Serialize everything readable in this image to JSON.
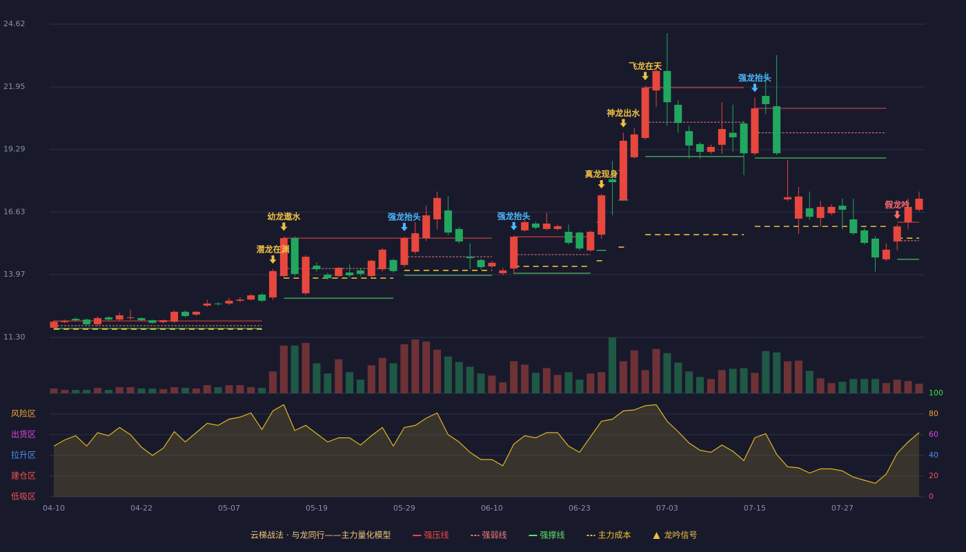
{
  "chart_data": {
    "type": "candlestick",
    "categories": [
      "04-10",
      null,
      null,
      null,
      null,
      null,
      null,
      null,
      "04-22",
      null,
      null,
      null,
      null,
      null,
      null,
      null,
      "05-07",
      null,
      null,
      null,
      null,
      null,
      null,
      null,
      "05-19",
      null,
      null,
      null,
      null,
      null,
      null,
      null,
      "05-29",
      null,
      null,
      null,
      null,
      null,
      null,
      null,
      "06-10",
      null,
      null,
      null,
      null,
      null,
      null,
      null,
      "06-23",
      null,
      null,
      null,
      null,
      null,
      null,
      null,
      "07-03",
      null,
      null,
      null,
      null,
      null,
      null,
      null,
      "07-15",
      null,
      null,
      null,
      null,
      null,
      null,
      null,
      "07-27",
      null,
      null,
      null,
      null,
      null,
      null,
      null
    ],
    "open": [
      11.71,
      11.95,
      12.09,
      12.06,
      11.86,
      12.15,
      12.06,
      12.12,
      12.12,
      12.03,
      11.95,
      11.97,
      12.39,
      12.27,
      12.65,
      12.74,
      12.74,
      12.86,
      12.91,
      13.12,
      13.0,
      13.91,
      15.52,
      13.18,
      14.35,
      13.97,
      13.91,
      14.06,
      14.15,
      13.91,
      14.2,
      14.59,
      14.38,
      14.94,
      15.52,
      16.32,
      16.7,
      15.91,
      14.73,
      14.59,
      14.32,
      14.03,
      14.23,
      15.85,
      16.14,
      15.91,
      15.91,
      15.79,
      15.76,
      15.0,
      15.67,
      18.02,
      17.14,
      18.96,
      19.78,
      21.8,
      22.63,
      21.19,
      20.07,
      19.52,
      19.19,
      19.49,
      20.0,
      20.4,
      19.13,
      21.57,
      21.13,
      17.17,
      16.35,
      16.79,
      16.38,
      16.58,
      16.9,
      16.32,
      15.85,
      15.5,
      14.62,
      15.38,
      16.2,
      16.73
    ],
    "close": [
      11.97,
      12.0,
      12.03,
      11.86,
      12.12,
      12.06,
      12.24,
      12.15,
      12.03,
      11.92,
      12.03,
      12.39,
      12.21,
      12.39,
      12.74,
      12.71,
      12.86,
      12.91,
      13.09,
      12.86,
      14.12,
      15.52,
      14.0,
      14.73,
      14.2,
      13.82,
      14.26,
      13.94,
      14.0,
      14.56,
      15.03,
      14.12,
      15.52,
      15.73,
      16.49,
      17.23,
      15.76,
      15.38,
      14.67,
      14.29,
      14.47,
      14.15,
      15.58,
      16.2,
      15.97,
      16.14,
      16.03,
      15.32,
      15.08,
      15.79,
      17.34,
      17.9,
      19.66,
      19.93,
      21.92,
      22.63,
      21.3,
      20.42,
      19.46,
      19.19,
      19.4,
      20.16,
      19.81,
      19.13,
      21.04,
      21.22,
      19.13,
      17.26,
      17.29,
      16.43,
      16.85,
      16.85,
      16.73,
      15.73,
      15.32,
      14.7,
      15.03,
      16.02,
      16.85,
      17.2
    ],
    "high": [
      12.03,
      12.06,
      12.15,
      12.1,
      12.2,
      12.2,
      12.35,
      12.48,
      12.15,
      12.06,
      12.06,
      12.45,
      12.45,
      12.42,
      12.9,
      12.8,
      12.98,
      13.0,
      13.15,
      13.18,
      14.2,
      15.6,
      15.6,
      14.8,
      14.5,
      14.05,
      14.3,
      14.4,
      14.25,
      14.6,
      15.1,
      14.65,
      15.58,
      16.2,
      16.9,
      17.5,
      17.3,
      16.0,
      15.3,
      14.65,
      14.55,
      14.25,
      15.62,
      16.3,
      16.22,
      16.6,
      16.1,
      16.1,
      15.8,
      15.85,
      17.4,
      18.8,
      20.0,
      20.2,
      22.0,
      22.9,
      24.24,
      21.4,
      20.3,
      19.6,
      19.5,
      21.3,
      21.2,
      20.5,
      21.5,
      22.6,
      23.3,
      18.84,
      17.7,
      17.5,
      17.1,
      16.95,
      17.2,
      17.2,
      15.95,
      15.6,
      15.3,
      16.1,
      17.2,
      17.5
    ],
    "low": [
      11.65,
      11.9,
      11.98,
      11.8,
      11.8,
      12.0,
      12.0,
      12.05,
      12.0,
      11.88,
      11.9,
      11.92,
      12.15,
      12.22,
      12.6,
      12.65,
      12.68,
      12.8,
      12.88,
      12.8,
      12.9,
      13.85,
      13.9,
      13.1,
      14.1,
      13.75,
      13.85,
      13.85,
      13.9,
      13.85,
      14.1,
      14.05,
      14.3,
      14.85,
      15.4,
      15.9,
      15.65,
      15.3,
      14.2,
      14.2,
      14.25,
      13.95,
      14.0,
      15.8,
      15.9,
      15.85,
      15.85,
      15.25,
      15.0,
      14.95,
      15.5,
      16.5,
      17.1,
      18.9,
      19.7,
      21.1,
      20.3,
      20.0,
      18.9,
      18.9,
      19.1,
      19.1,
      19.2,
      18.2,
      19.05,
      20.8,
      19.05,
      17.1,
      15.7,
      16.3,
      16.0,
      16.5,
      15.9,
      15.65,
      15.25,
      14.1,
      14.55,
      15.0,
      15.9,
      16.65
    ],
    "up_color": "#e8473d",
    "down_color": "#22a85e",
    "ylim": [
      11.3,
      24.62
    ],
    "yticks": [
      {
        "value": 11.3,
        "label": "11.30"
      },
      13.97,
      16.63,
      19.29,
      21.95,
      24.62
    ],
    "volume": [
      7,
      5,
      5,
      5,
      8,
      5,
      9,
      9,
      7,
      7,
      6,
      9,
      8,
      7,
      12,
      9,
      12,
      12,
      9,
      8,
      32,
      70,
      70,
      74,
      44,
      29,
      50,
      31,
      20,
      41,
      52,
      44,
      72,
      79,
      76,
      64,
      54,
      46,
      39,
      29,
      26,
      16,
      47,
      42,
      30,
      37,
      27,
      31,
      20,
      29,
      31,
      82,
      47,
      63,
      34,
      65,
      59,
      45,
      32,
      24,
      21,
      34,
      36,
      37,
      30,
      62,
      60,
      47,
      48,
      33,
      22,
      15,
      17,
      21,
      21,
      21,
      15,
      20,
      18,
      14
    ],
    "volume_up_color": "#6e3236",
    "volume_down_color": "#1f5844",
    "levels": [
      {
        "name": "强压线",
        "color": "#f0483e",
        "dash": false,
        "segments": [
          {
            "start": 0,
            "end": 19,
            "value": 12.0
          },
          {
            "start": 21,
            "end": 40,
            "value": 15.52
          },
          {
            "start": 42,
            "end": 49,
            "value": 15.58
          },
          {
            "start": 54,
            "end": 63,
            "value": 21.92
          },
          {
            "start": 64,
            "end": 76,
            "value": 21.04
          },
          {
            "start": 77,
            "end": 79,
            "value": 16.2
          }
        ]
      },
      {
        "name": "强弱线",
        "color": "#f07a7a",
        "dash": true,
        "segments": [
          {
            "start": 0,
            "end": 19,
            "value": 11.8
          },
          {
            "start": 21,
            "end": 31,
            "value": 14.23
          },
          {
            "start": 32,
            "end": 40,
            "value": 14.73
          },
          {
            "start": 42,
            "end": 49,
            "value": 14.82
          },
          {
            "start": 50,
            "end": 50,
            "value": 16.2
          },
          {
            "start": 52,
            "end": 52,
            "value": 18.4
          },
          {
            "start": 54,
            "end": 63,
            "value": 20.45
          },
          {
            "start": 64,
            "end": 76,
            "value": 20.0
          },
          {
            "start": 77,
            "end": 79,
            "value": 15.41
          }
        ]
      },
      {
        "name": "强撑线",
        "color": "#5ee06a",
        "dash": false,
        "segments": [
          {
            "start": 0,
            "end": 19,
            "value": 11.68
          },
          {
            "start": 21,
            "end": 31,
            "value": 12.97
          },
          {
            "start": 32,
            "end": 40,
            "value": 13.94
          },
          {
            "start": 42,
            "end": 49,
            "value": 14.03
          },
          {
            "start": 50,
            "end": 50,
            "value": 15.0
          },
          {
            "start": 52,
            "end": 52,
            "value": 17.14
          },
          {
            "start": 54,
            "end": 63,
            "value": 18.99
          },
          {
            "start": 64,
            "end": 76,
            "value": 18.93
          },
          {
            "start": 77,
            "end": 79,
            "value": 14.62
          }
        ]
      },
      {
        "name": "主力成本",
        "color": "#f0c030",
        "dash": true,
        "segments": [
          {
            "start": 0,
            "end": 19,
            "value": 11.65
          },
          {
            "start": 21,
            "end": 31,
            "value": 13.82
          },
          {
            "start": 32,
            "end": 40,
            "value": 14.15
          },
          {
            "start": 42,
            "end": 49,
            "value": 14.32
          },
          {
            "start": 50,
            "end": 50,
            "value": 14.56
          },
          {
            "start": 52,
            "end": 52,
            "value": 15.14
          },
          {
            "start": 54,
            "end": 63,
            "value": 15.67
          },
          {
            "start": 64,
            "end": 76,
            "value": 16.02
          },
          {
            "start": 77,
            "end": 79,
            "value": 15.52
          }
        ]
      }
    ],
    "signals": [
      {
        "index": 20,
        "label": "潜龙在渊",
        "color": "#f0c040"
      },
      {
        "index": 21,
        "label": "幼龙遨水",
        "color": "#f0c040"
      },
      {
        "index": 32,
        "label": "强龙抬头",
        "color": "#4db8ff"
      },
      {
        "index": 42,
        "label": "强龙抬头",
        "color": "#4db8ff"
      },
      {
        "index": 50,
        "label": "真龙现身",
        "color": "#f0c040"
      },
      {
        "index": 52,
        "label": "神龙出水",
        "color": "#f0c040"
      },
      {
        "index": 54,
        "label": "飞龙在天",
        "color": "#f0c040"
      },
      {
        "index": 64,
        "label": "强龙抬头",
        "color": "#4db8ff"
      },
      {
        "index": 77,
        "label": "假龙吟",
        "color": "#ff6b6b"
      }
    ],
    "oscillator": {
      "values": [
        49,
        55,
        59,
        49,
        62,
        59,
        67,
        60,
        48,
        40,
        47,
        63,
        53,
        62,
        71,
        69,
        75,
        77,
        81,
        65,
        83,
        89,
        64,
        69,
        61,
        53,
        57,
        57,
        50,
        59,
        67,
        49,
        67,
        69,
        76,
        81,
        60,
        53,
        43,
        36,
        36,
        30,
        51,
        59,
        57,
        62,
        62,
        49,
        43,
        58,
        73,
        75,
        83,
        84,
        88,
        89,
        73,
        63,
        52,
        45,
        43,
        50,
        44,
        35,
        57,
        61,
        41,
        29,
        28,
        23,
        27,
        27,
        25,
        19,
        16,
        13,
        22,
        42,
        53,
        62
      ],
      "color": "#e0b820",
      "y2lim": [
        0,
        100
      ],
      "y2ticks": [
        0,
        20,
        40,
        60,
        80,
        100
      ],
      "tick_colors": [
        "#f05050",
        "#f05050",
        "#4a90f0",
        "#e040e0",
        "#f0a030",
        "#40e040"
      ],
      "zone_labels": [
        "低吸区",
        "建仓区",
        "拉升区",
        "出货区",
        "风险区"
      ]
    },
    "legend_title": "云梯战法 · 与龙同行——主力量化模型",
    "signal_legend": "龙吟信号",
    "signal_legend_color": "#f0c040"
  }
}
